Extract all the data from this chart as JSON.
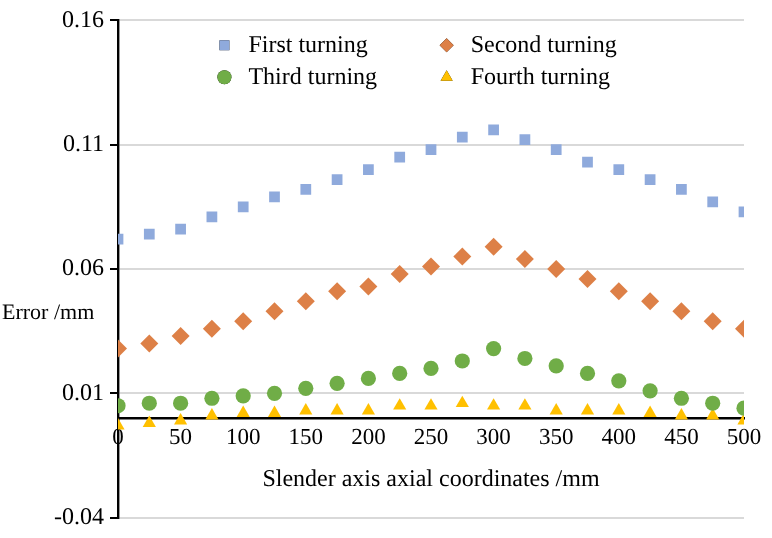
{
  "chart_data": {
    "type": "scatter",
    "xlabel": "Slender axis axial coordinates /mm",
    "ylabel": "Error /mm",
    "x": [
      0,
      25,
      50,
      75,
      100,
      125,
      150,
      175,
      200,
      225,
      250,
      275,
      300,
      325,
      350,
      375,
      400,
      425,
      450,
      475,
      500
    ],
    "series": [
      {
        "name": "First turning",
        "color": "#8faadc",
        "marker": "square",
        "values": [
          0.072,
          0.074,
          0.076,
          0.081,
          0.085,
          0.089,
          0.092,
          0.096,
          0.1,
          0.105,
          0.108,
          0.113,
          0.116,
          0.112,
          0.108,
          0.103,
          0.1,
          0.096,
          0.092,
          0.087,
          0.083
        ]
      },
      {
        "name": "Second turning",
        "color": "#dd8047",
        "marker": "diamond",
        "values": [
          0.028,
          0.03,
          0.033,
          0.036,
          0.039,
          0.043,
          0.047,
          0.051,
          0.053,
          0.058,
          0.061,
          0.065,
          0.069,
          0.064,
          0.06,
          0.056,
          0.051,
          0.047,
          0.043,
          0.039,
          0.036
        ]
      },
      {
        "name": "Third turning",
        "color": "#70ad47",
        "marker": "circle",
        "values": [
          0.005,
          0.006,
          0.006,
          0.008,
          0.009,
          0.01,
          0.012,
          0.014,
          0.016,
          0.018,
          0.02,
          0.023,
          0.028,
          0.024,
          0.021,
          0.018,
          0.015,
          0.011,
          0.008,
          0.006,
          0.004
        ]
      },
      {
        "name": "Fourth turning",
        "color": "#ffc000",
        "marker": "triangle",
        "values": [
          -0.003,
          -0.002,
          -0.001,
          0.001,
          0.002,
          0.002,
          0.003,
          0.003,
          0.003,
          0.005,
          0.005,
          0.006,
          0.005,
          0.005,
          0.003,
          0.003,
          0.003,
          0.002,
          0.001,
          0.001,
          -0.001
        ]
      }
    ],
    "xlim": [
      0,
      500
    ],
    "xticks": [
      0,
      50,
      100,
      150,
      200,
      250,
      300,
      350,
      400,
      450,
      500
    ],
    "ylim": [
      -0.04,
      0.16
    ],
    "yticks": [
      -0.04,
      0.01,
      0.06,
      0.11,
      0.16
    ],
    "grid": "y",
    "legend": "top"
  }
}
